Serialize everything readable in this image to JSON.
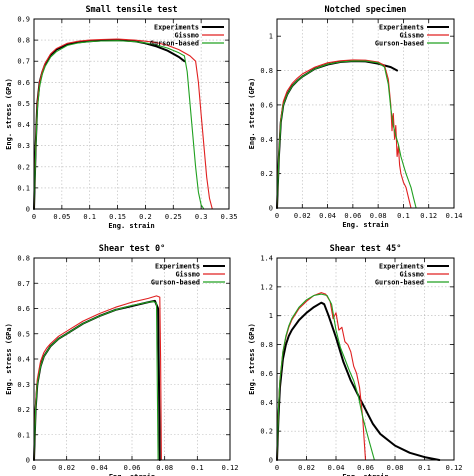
{
  "chart_data": [
    {
      "type": "line",
      "title": "Small tensile test",
      "xlabel": "Eng. strain",
      "ylabel": "Eng. stress (GPa)",
      "xlim": [
        0,
        0.35
      ],
      "ylim": [
        0,
        0.9
      ],
      "xticks": [
        "0",
        "0.05",
        "0.1",
        "0.15",
        "0.2",
        "0.25",
        "0.3",
        "0.35"
      ],
      "yticks": [
        "0",
        "0.1",
        "0.2",
        "0.3",
        "0.4",
        "0.5",
        "0.6",
        "0.7",
        "0.8",
        "0.9"
      ],
      "grid": true,
      "legend": "top-right",
      "series": [
        {
          "name": "Experiments",
          "color": "#000000",
          "x": [
            0,
            0.003,
            0.006,
            0.01,
            0.015,
            0.02,
            0.03,
            0.04,
            0.06,
            0.08,
            0.1,
            0.12,
            0.15,
            0.18,
            0.2,
            0.22,
            0.24,
            0.26,
            0.27
          ],
          "y": [
            0,
            0.3,
            0.5,
            0.6,
            0.65,
            0.685,
            0.73,
            0.755,
            0.78,
            0.79,
            0.795,
            0.798,
            0.8,
            0.795,
            0.785,
            0.77,
            0.75,
            0.72,
            0.7
          ]
        },
        {
          "name": "Gissmo",
          "color": "#e02020",
          "x": [
            0,
            0.003,
            0.006,
            0.01,
            0.015,
            0.02,
            0.03,
            0.04,
            0.06,
            0.08,
            0.1,
            0.12,
            0.15,
            0.18,
            0.2,
            0.22,
            0.24,
            0.26,
            0.28,
            0.29,
            0.295,
            0.3,
            0.305,
            0.31,
            0.315,
            0.32
          ],
          "y": [
            0,
            0.3,
            0.5,
            0.6,
            0.655,
            0.69,
            0.735,
            0.76,
            0.785,
            0.795,
            0.8,
            0.803,
            0.805,
            0.8,
            0.795,
            0.788,
            0.775,
            0.755,
            0.725,
            0.7,
            0.6,
            0.45,
            0.3,
            0.15,
            0.05,
            0
          ]
        },
        {
          "name": "Gurson-based",
          "color": "#20a020",
          "x": [
            0,
            0.003,
            0.006,
            0.01,
            0.015,
            0.02,
            0.03,
            0.04,
            0.06,
            0.08,
            0.1,
            0.12,
            0.15,
            0.18,
            0.2,
            0.22,
            0.24,
            0.26,
            0.27,
            0.275,
            0.28,
            0.285,
            0.29,
            0.295,
            0.3,
            0.305
          ],
          "y": [
            0,
            0.28,
            0.47,
            0.58,
            0.64,
            0.675,
            0.72,
            0.745,
            0.775,
            0.787,
            0.793,
            0.796,
            0.797,
            0.793,
            0.787,
            0.777,
            0.762,
            0.74,
            0.725,
            0.65,
            0.5,
            0.35,
            0.2,
            0.08,
            0.02,
            0
          ]
        }
      ]
    },
    {
      "type": "line",
      "title": "Notched specimen",
      "xlabel": "Eng. strain",
      "ylabel": "Eng. stress (GPa)",
      "xlim": [
        0,
        0.14
      ],
      "ylim": [
        0,
        1.1
      ],
      "xticks": [
        "0",
        "0.02",
        "0.04",
        "0.06",
        "0.08",
        "0.1",
        "0.12",
        "0.14"
      ],
      "yticks": [
        "0",
        "0.2",
        "0.4",
        "0.6",
        "0.8",
        "1"
      ],
      "grid": true,
      "legend": "top-right",
      "series": [
        {
          "name": "Experiments",
          "color": "#000000",
          "x": [
            0,
            0.0015,
            0.003,
            0.005,
            0.008,
            0.012,
            0.016,
            0.02,
            0.03,
            0.04,
            0.05,
            0.06,
            0.07,
            0.08,
            0.09,
            0.095
          ],
          "y": [
            0,
            0.3,
            0.5,
            0.6,
            0.66,
            0.71,
            0.74,
            0.765,
            0.81,
            0.835,
            0.85,
            0.855,
            0.853,
            0.84,
            0.82,
            0.8
          ]
        },
        {
          "name": "Gissmo",
          "color": "#e02020",
          "x": [
            0,
            0.0015,
            0.003,
            0.005,
            0.008,
            0.012,
            0.016,
            0.02,
            0.03,
            0.04,
            0.05,
            0.06,
            0.07,
            0.08,
            0.085,
            0.088,
            0.09,
            0.091,
            0.092,
            0.093,
            0.094,
            0.095,
            0.096,
            0.097,
            0.098,
            0.1,
            0.102,
            0.104,
            0.106
          ],
          "y": [
            0,
            0.32,
            0.52,
            0.62,
            0.68,
            0.725,
            0.755,
            0.78,
            0.82,
            0.845,
            0.857,
            0.862,
            0.86,
            0.85,
            0.83,
            0.75,
            0.6,
            0.45,
            0.55,
            0.4,
            0.48,
            0.3,
            0.36,
            0.25,
            0.2,
            0.15,
            0.12,
            0.06,
            0
          ]
        },
        {
          "name": "Gurson-based",
          "color": "#20a020",
          "x": [
            0,
            0.0015,
            0.003,
            0.005,
            0.008,
            0.012,
            0.016,
            0.02,
            0.03,
            0.04,
            0.05,
            0.06,
            0.07,
            0.08,
            0.085,
            0.088,
            0.09,
            0.092,
            0.094,
            0.096,
            0.098,
            0.1,
            0.102,
            0.104,
            0.106,
            0.108,
            0.11
          ],
          "y": [
            0,
            0.3,
            0.5,
            0.6,
            0.66,
            0.71,
            0.74,
            0.765,
            0.81,
            0.837,
            0.85,
            0.856,
            0.855,
            0.845,
            0.82,
            0.72,
            0.58,
            0.48,
            0.42,
            0.37,
            0.3,
            0.25,
            0.2,
            0.16,
            0.12,
            0.06,
            0
          ]
        }
      ]
    },
    {
      "type": "line",
      "title": "Shear test 0°",
      "xlabel": "Eng. strain",
      "ylabel": "Eng. stress (GPa)",
      "xlim": [
        0,
        0.12
      ],
      "ylim": [
        0,
        0.8
      ],
      "xticks": [
        "0",
        "0.02",
        "0.04",
        "0.06",
        "0.08",
        "0.1",
        "0.12"
      ],
      "yticks": [
        "0",
        "0.1",
        "0.2",
        "0.3",
        "0.4",
        "0.5",
        "0.6",
        "0.7",
        "0.8"
      ],
      "grid": true,
      "legend": "top-right",
      "series": [
        {
          "name": "Experiments",
          "color": "#000000",
          "x": [
            0,
            0.001,
            0.002,
            0.004,
            0.006,
            0.008,
            0.01,
            0.015,
            0.02,
            0.03,
            0.04,
            0.05,
            0.06,
            0.07,
            0.074,
            0.076,
            0.0765,
            0.077
          ],
          "y": [
            0,
            0.2,
            0.3,
            0.37,
            0.41,
            0.43,
            0.45,
            0.48,
            0.5,
            0.54,
            0.57,
            0.595,
            0.61,
            0.625,
            0.63,
            0.6,
            0.3,
            0
          ]
        },
        {
          "name": "Gissmo",
          "color": "#e02020",
          "x": [
            0,
            0.001,
            0.002,
            0.004,
            0.006,
            0.008,
            0.01,
            0.015,
            0.02,
            0.03,
            0.04,
            0.05,
            0.06,
            0.07,
            0.075,
            0.077,
            0.0775,
            0.078
          ],
          "y": [
            0,
            0.22,
            0.32,
            0.39,
            0.425,
            0.445,
            0.46,
            0.49,
            0.51,
            0.55,
            0.58,
            0.605,
            0.625,
            0.64,
            0.65,
            0.645,
            0.4,
            0
          ]
        },
        {
          "name": "Gurson-based",
          "color": "#20a020",
          "x": [
            0,
            0.001,
            0.002,
            0.004,
            0.006,
            0.008,
            0.01,
            0.015,
            0.02,
            0.03,
            0.04,
            0.05,
            0.06,
            0.07,
            0.073,
            0.075,
            0.0755,
            0.076
          ],
          "y": [
            0,
            0.2,
            0.3,
            0.37,
            0.41,
            0.43,
            0.45,
            0.48,
            0.5,
            0.54,
            0.57,
            0.595,
            0.612,
            0.625,
            0.628,
            0.62,
            0.3,
            0
          ]
        }
      ]
    },
    {
      "type": "line",
      "title": "Shear test 45°",
      "xlabel": "Eng. strain",
      "ylabel": "Eng. stress (GPa)",
      "xlim": [
        0,
        0.12
      ],
      "ylim": [
        0,
        1.4
      ],
      "xticks": [
        "0",
        "0.02",
        "0.04",
        "0.06",
        "0.08",
        "0.1",
        "0.12"
      ],
      "yticks": [
        "0",
        "0.2",
        "0.4",
        "0.6",
        "0.8",
        "1",
        "1.2",
        "1.4"
      ],
      "grid": true,
      "legend": "top-right",
      "series": [
        {
          "name": "Experiments",
          "color": "#000000",
          "x": [
            0,
            0.001,
            0.002,
            0.004,
            0.006,
            0.008,
            0.01,
            0.015,
            0.02,
            0.025,
            0.03,
            0.032,
            0.035,
            0.04,
            0.045,
            0.05,
            0.055,
            0.06,
            0.065,
            0.07,
            0.08,
            0.09,
            0.1,
            0.11
          ],
          "y": [
            0,
            0.3,
            0.5,
            0.7,
            0.8,
            0.86,
            0.9,
            0.97,
            1.02,
            1.06,
            1.09,
            1.08,
            1.0,
            0.85,
            0.68,
            0.55,
            0.45,
            0.35,
            0.25,
            0.18,
            0.1,
            0.05,
            0.02,
            0
          ]
        },
        {
          "name": "Gissmo",
          "color": "#e02020",
          "x": [
            0,
            0.001,
            0.002,
            0.004,
            0.006,
            0.008,
            0.01,
            0.015,
            0.02,
            0.025,
            0.03,
            0.033,
            0.036,
            0.038,
            0.04,
            0.042,
            0.044,
            0.046,
            0.048,
            0.05,
            0.052,
            0.054,
            0.056,
            0.058,
            0.06
          ],
          "y": [
            0,
            0.35,
            0.55,
            0.75,
            0.85,
            0.92,
            0.97,
            1.05,
            1.1,
            1.14,
            1.16,
            1.15,
            1.1,
            0.98,
            1.02,
            0.9,
            0.92,
            0.82,
            0.8,
            0.75,
            0.65,
            0.6,
            0.5,
            0.3,
            0
          ]
        },
        {
          "name": "Gurson-based",
          "color": "#20a020",
          "x": [
            0,
            0.001,
            0.002,
            0.004,
            0.006,
            0.008,
            0.01,
            0.015,
            0.02,
            0.025,
            0.03,
            0.034,
            0.037,
            0.04,
            0.043,
            0.046,
            0.049,
            0.052,
            0.055,
            0.058,
            0.062,
            0.066
          ],
          "y": [
            0,
            0.35,
            0.55,
            0.75,
            0.86,
            0.93,
            0.98,
            1.06,
            1.11,
            1.14,
            1.15,
            1.14,
            1.08,
            0.9,
            0.78,
            0.7,
            0.62,
            0.55,
            0.45,
            0.3,
            0.15,
            0
          ]
        }
      ]
    }
  ]
}
